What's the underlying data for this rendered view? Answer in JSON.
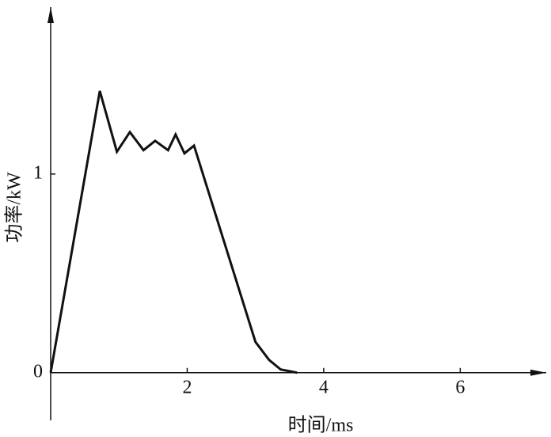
{
  "chart_data": {
    "type": "line",
    "x_label": "时间/ms",
    "y_label": "功率/kW",
    "x": [
      0,
      0.72,
      0.97,
      1.16,
      1.36,
      1.53,
      1.72,
      1.83,
      1.96,
      2.1,
      3.0,
      3.2,
      3.37,
      3.61
    ],
    "values": [
      0,
      1.418,
      1.112,
      1.211,
      1.12,
      1.167,
      1.12,
      1.199,
      1.104,
      1.143,
      0.155,
      0.064,
      0.016,
      0
    ],
    "color": "#111111",
    "xlim": [
      0,
      7.26
    ],
    "ylim": [
      -0.24,
      1.84
    ],
    "xticks": [
      2,
      4,
      6
    ],
    "yticks": [
      0,
      1
    ]
  }
}
